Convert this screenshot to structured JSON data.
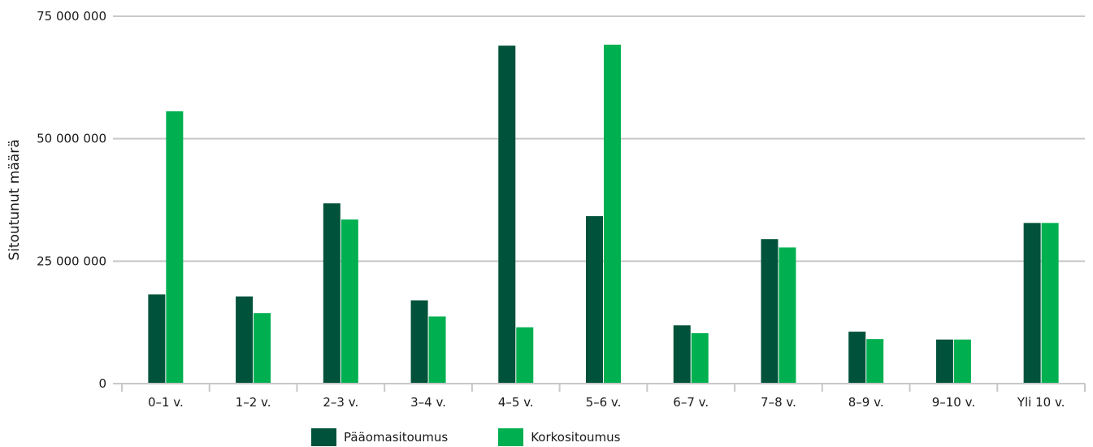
{
  "chart_data": {
    "type": "bar",
    "ylabel": "Sitoutunut määrä",
    "xlabel": "",
    "ylim": [
      0,
      75000000
    ],
    "yticks": [
      0,
      25000000,
      50000000,
      75000000
    ],
    "ytick_labels": [
      "0",
      "25 000 000",
      "50 000 000",
      "75 000 000"
    ],
    "grid": true,
    "legend_position": "bottom",
    "categories": [
      "0–1 v.",
      "1–2 v.",
      "2–3 v.",
      "3–4 v.",
      "4–5 v.",
      "5–6 v.",
      "6–7 v.",
      "7–8 v.",
      "8–9 v.",
      "9–10 v.",
      "Yli 10 v."
    ],
    "series": [
      {
        "name": "Pääomasitoumus",
        "color": "#00523a",
        "values": [
          18200000,
          17800000,
          36800000,
          17000000,
          69000000,
          34200000,
          11900000,
          29500000,
          10600000,
          9000000,
          32800000
        ]
      },
      {
        "name": "Korkositoumus",
        "color": "#00b050",
        "values": [
          55600000,
          14400000,
          33500000,
          13700000,
          11500000,
          69200000,
          10300000,
          27800000,
          9100000,
          9000000,
          32800000
        ]
      }
    ]
  }
}
